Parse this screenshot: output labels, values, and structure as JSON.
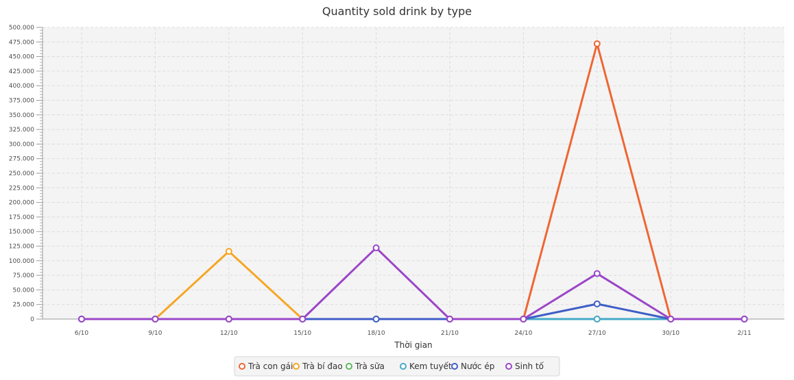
{
  "chart_data": {
    "type": "line",
    "title": "Quantity sold drink by type",
    "xlabel": "Thời gian",
    "ylabel": "",
    "ylim": [
      0,
      500000
    ],
    "y_tick_step": 25000,
    "y_tick_labels": [
      "0",
      "25.000",
      "50.000",
      "75.000",
      "100.000",
      "125.000",
      "150.000",
      "175.000",
      "200.000",
      "225.000",
      "250.000",
      "275.000",
      "300.000",
      "325.000",
      "350.000",
      "375.000",
      "400.000",
      "425.000",
      "450.000",
      "475.000",
      "500.000"
    ],
    "categories": [
      "6/10",
      "9/10",
      "12/10",
      "15/10",
      "18/10",
      "21/10",
      "24/10",
      "27/10",
      "30/10",
      "2/11"
    ],
    "grid": true,
    "legend_position": "bottom",
    "series": [
      {
        "name": "Trà con gái",
        "color": "#ef6633",
        "values": [
          0,
          0,
          0,
          0,
          0,
          0,
          0,
          472000,
          0,
          0
        ]
      },
      {
        "name": "Trà bí đao",
        "color": "#f6a623",
        "values": [
          0,
          0,
          116000,
          0,
          0,
          0,
          0,
          0,
          0,
          0
        ]
      },
      {
        "name": "Trà sữa",
        "color": "#5cb85c",
        "values": [
          0,
          0,
          0,
          0,
          0,
          0,
          0,
          0,
          0,
          0
        ]
      },
      {
        "name": "Kem tuyết",
        "color": "#45a9c9",
        "values": [
          0,
          0,
          0,
          0,
          0,
          0,
          0,
          0,
          0,
          0
        ]
      },
      {
        "name": "Nước ép",
        "color": "#3f5ec7",
        "values": [
          0,
          0,
          0,
          0,
          0,
          0,
          0,
          26000,
          0,
          0
        ]
      },
      {
        "name": "Sinh tố",
        "color": "#9b46c8",
        "values": [
          0,
          0,
          0,
          0,
          122000,
          0,
          0,
          78000,
          0,
          0
        ]
      }
    ]
  }
}
